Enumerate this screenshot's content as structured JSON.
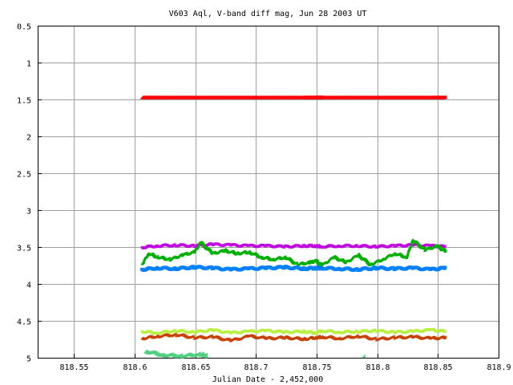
{
  "chart_data": {
    "type": "scatter",
    "title": "V603 Aql, V-band diff mag, Jun 28 2003 UT",
    "xlabel": "Julian Date - 2,452,000",
    "ylabel": "",
    "xlim": [
      818.52,
      818.9
    ],
    "ylim": [
      0.5,
      5.0
    ],
    "y_inverted": true,
    "grid": true,
    "x_ticks": [
      {
        "value": 818.55,
        "label": "818.55"
      },
      {
        "value": 818.6,
        "label": "818.6"
      },
      {
        "value": 818.65,
        "label": "818.65"
      },
      {
        "value": 818.7,
        "label": "818.7"
      },
      {
        "value": 818.75,
        "label": "818.75"
      },
      {
        "value": 818.8,
        "label": "818.8"
      },
      {
        "value": 818.85,
        "label": "818.85"
      },
      {
        "value": 818.9,
        "label": "818.9"
      }
    ],
    "y_ticks": [
      {
        "value": 0.5,
        "label": "0.5"
      },
      {
        "value": 1.0,
        "label": "1"
      },
      {
        "value": 1.5,
        "label": "1.5"
      },
      {
        "value": 2.0,
        "label": "2"
      },
      {
        "value": 2.5,
        "label": "2.5"
      },
      {
        "value": 3.0,
        "label": "3"
      },
      {
        "value": 3.5,
        "label": "3.5"
      },
      {
        "value": 4.0,
        "label": "4"
      },
      {
        "value": 4.5,
        "label": "4.5"
      },
      {
        "value": 5.0,
        "label": "5"
      }
    ],
    "series": [
      {
        "marker": "diamond",
        "color": "#ff0000",
        "x": [
          818.607,
          818.62,
          818.635,
          818.65,
          818.665,
          818.68,
          818.695,
          818.71,
          818.725,
          818.74,
          818.75,
          818.755,
          818.77,
          818.785,
          818.8,
          818.815,
          818.83,
          818.845,
          818.857
        ],
        "y": [
          1.49,
          1.49,
          1.49,
          1.49,
          1.49,
          1.49,
          1.49,
          1.49,
          1.49,
          1.49,
          1.49,
          1.49,
          1.49,
          1.49,
          1.49,
          1.49,
          1.49,
          1.49,
          1.49
        ]
      },
      {
        "marker": "cross",
        "color": "#c000e0",
        "x": [
          818.607,
          818.62,
          818.635,
          818.65,
          818.665,
          818.68,
          818.695,
          818.71,
          818.725,
          818.74,
          818.75,
          818.755,
          818.77,
          818.785,
          818.8,
          818.815,
          818.83,
          818.845,
          818.857
        ],
        "y": [
          3.52,
          3.5,
          3.49,
          3.5,
          3.48,
          3.49,
          3.5,
          3.5,
          3.51,
          3.5,
          3.5,
          3.51,
          3.5,
          3.5,
          3.51,
          3.5,
          3.49,
          3.5,
          3.51
        ]
      },
      {
        "marker": "star",
        "color": "#00b000",
        "x": [
          818.607,
          818.612,
          818.62,
          818.63,
          818.64,
          818.65,
          818.655,
          818.665,
          818.675,
          818.685,
          818.695,
          818.705,
          818.715,
          818.725,
          818.735,
          818.745,
          818.75,
          818.755,
          818.765,
          818.775,
          818.785,
          818.795,
          818.805,
          818.815,
          818.825,
          818.83,
          818.84,
          818.85,
          818.857
        ],
        "y": [
          3.74,
          3.6,
          3.65,
          3.68,
          3.62,
          3.58,
          3.45,
          3.6,
          3.56,
          3.6,
          3.58,
          3.65,
          3.68,
          3.65,
          3.75,
          3.72,
          3.7,
          3.76,
          3.65,
          3.72,
          3.62,
          3.75,
          3.68,
          3.6,
          3.65,
          3.42,
          3.55,
          3.5,
          3.57
        ]
      },
      {
        "marker": "square",
        "color": "#0080ff",
        "x": [
          818.607,
          818.62,
          818.635,
          818.65,
          818.665,
          818.68,
          818.695,
          818.71,
          818.725,
          818.74,
          818.75,
          818.755,
          818.77,
          818.785,
          818.8,
          818.815,
          818.83,
          818.845,
          818.857
        ],
        "y": [
          3.82,
          3.8,
          3.81,
          3.79,
          3.8,
          3.82,
          3.81,
          3.8,
          3.79,
          3.81,
          3.8,
          3.8,
          3.81,
          3.82,
          3.8,
          3.81,
          3.8,
          3.82,
          3.8
        ]
      },
      {
        "marker": "cross",
        "color": "#b8f040",
        "x": [
          818.607,
          818.62,
          818.635,
          818.65,
          818.665,
          818.68,
          818.695,
          818.71,
          818.725,
          818.74,
          818.75,
          818.755,
          818.77,
          818.785,
          818.8,
          818.815,
          818.83,
          818.845,
          818.857
        ],
        "y": [
          4.66,
          4.68,
          4.65,
          4.67,
          4.64,
          4.68,
          4.66,
          4.65,
          4.67,
          4.66,
          4.68,
          4.65,
          4.67,
          4.66,
          4.65,
          4.67,
          4.66,
          4.64,
          4.66
        ]
      },
      {
        "marker": "star",
        "color": "#c84000",
        "x": [
          818.607,
          818.62,
          818.635,
          818.65,
          818.665,
          818.68,
          818.695,
          818.71,
          818.725,
          818.74,
          818.75,
          818.755,
          818.77,
          818.785,
          818.8,
          818.815,
          818.83,
          818.845,
          818.857
        ],
        "y": [
          4.75,
          4.72,
          4.7,
          4.74,
          4.73,
          4.78,
          4.72,
          4.75,
          4.74,
          4.76,
          4.74,
          4.73,
          4.75,
          4.72,
          4.76,
          4.74,
          4.73,
          4.75,
          4.74
        ]
      },
      {
        "marker": "diamond-open",
        "color": "#50d080",
        "x": [
          818.61,
          818.625,
          818.64,
          818.655,
          818.66,
          818.79
        ],
        "y": [
          4.93,
          4.98,
          4.99,
          4.97,
          4.99,
          4.99
        ]
      }
    ]
  }
}
